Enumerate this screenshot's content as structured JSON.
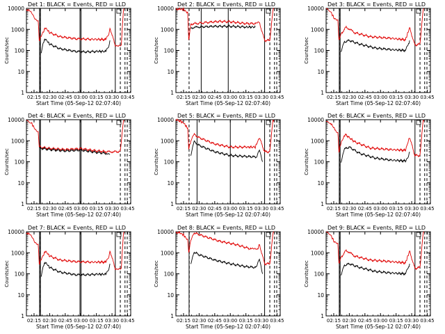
{
  "figure": {
    "start_time_label": "Start Time (05-Sep-12 02:07:40)",
    "ylabel": "Counts/sec",
    "y_ticks": [
      "1",
      "10",
      "100",
      "1000",
      "10000"
    ],
    "x_ticks": [
      "02:15",
      "02:30",
      "02:45",
      "03:00",
      "03:15",
      "03:30",
      "03:45"
    ],
    "events_color": "#000000",
    "lld_color": "#e00000"
  },
  "chart_data": [
    {
      "type": "line",
      "title": "Det 1: BLACK = Events, RED = LLD",
      "ylabel": "Counts/sec",
      "xlabel": "Start Time (05-Sep-12 02:07:40)",
      "yscale": "log",
      "ylim": [
        1,
        10000
      ],
      "xlim": [
        "02:07:40",
        "03:48:00"
      ],
      "solid_vlines": [
        "02:20:20",
        "02:21:10",
        "02:59:10",
        "03:00:10",
        "03:33:10"
      ],
      "dashed_vlines": [
        "02:20:30",
        "03:38:00",
        "03:42:30",
        "03:44:40"
      ],
      "series": [
        {
          "name": "Events",
          "color": "#000000",
          "x": [
            "02:22:00",
            "02:24:00",
            "02:26:00",
            "02:30:00",
            "02:40:00",
            "02:55:00",
            "03:05:00",
            "03:15:00",
            "03:24:00",
            "03:27:00",
            "03:28:00"
          ],
          "values": [
            80,
            250,
            350,
            200,
            120,
            90,
            85,
            90,
            90,
            160,
            300
          ]
        },
        {
          "name": "LLD",
          "color": "#e00000",
          "x": [
            "02:07:40",
            "02:10:00",
            "02:13:00",
            "02:16:00",
            "02:19:00",
            "02:20:00",
            "02:22:00",
            "02:26:00",
            "02:30:00",
            "02:40:00",
            "02:55:00",
            "03:10:00",
            "03:24:00",
            "03:27:00",
            "03:28:00",
            "03:33:00",
            "03:36:00",
            "03:39:00",
            "03:41:00",
            "03:42:00"
          ],
          "values": [
            9000,
            8000,
            5500,
            3000,
            2500,
            300,
            500,
            1200,
            700,
            450,
            360,
            340,
            330,
            600,
            1200,
            180,
            180,
            190,
            9000,
            9500
          ]
        }
      ]
    },
    {
      "type": "line",
      "title": "Det 2: BLACK = Events, RED = LLD",
      "ylabel": "Counts/sec",
      "xlabel": "Start Time (05-Sep-12 02:07:40)",
      "yscale": "log",
      "ylim": [
        1,
        10000
      ],
      "xlim": [
        "02:07:40",
        "03:48:00"
      ],
      "solid_vlines": [
        "02:32:00",
        "02:58:00",
        "03:33:00"
      ],
      "dashed_vlines": [
        "02:20:20",
        "03:38:00",
        "03:42:30",
        "03:44:40"
      ],
      "series": [
        {
          "name": "Events",
          "color": "#000000",
          "x": [
            "02:22:00",
            "02:30:00",
            "02:45:00",
            "03:00:00",
            "03:15:00",
            "03:24:00"
          ],
          "values": [
            1200,
            1300,
            1400,
            1400,
            1300,
            1300
          ]
        },
        {
          "name": "LLD",
          "color": "#e00000",
          "x": [
            "02:07:40",
            "02:11:00",
            "02:15:00",
            "02:19:00",
            "02:20:00",
            "02:22:00",
            "02:40:00",
            "02:50:00",
            "03:00:00",
            "03:15:00",
            "03:25:00",
            "03:28:00",
            "03:33:00",
            "03:38:00",
            "03:41:00",
            "03:42:00"
          ],
          "values": [
            9500,
            9200,
            9000,
            6000,
            300,
            1800,
            2200,
            2400,
            2300,
            1900,
            1900,
            2100,
            300,
            300,
            9000,
            9500
          ]
        }
      ]
    },
    {
      "type": "line",
      "title": "Det 3: BLACK = Events, RED = LLD",
      "ylabel": "Counts/sec",
      "xlabel": "Start Time (05-Sep-12 02:07:40)",
      "yscale": "log",
      "ylim": [
        1,
        10000
      ],
      "xlim": [
        "02:07:40",
        "03:48:00"
      ],
      "solid_vlines": [
        "02:20:20",
        "02:21:10",
        "03:33:10"
      ],
      "dashed_vlines": [
        "02:20:30",
        "03:38:00",
        "03:42:30",
        "03:44:40"
      ],
      "series": [
        {
          "name": "Events",
          "color": "#000000",
          "x": [
            "02:22:00",
            "02:25:00",
            "02:30:00",
            "02:40:00",
            "02:55:00",
            "03:10:00",
            "03:24:00",
            "03:27:00",
            "03:28:00"
          ],
          "values": [
            80,
            250,
            300,
            200,
            130,
            110,
            100,
            200,
            300
          ]
        },
        {
          "name": "LLD",
          "color": "#e00000",
          "x": [
            "02:07:40",
            "02:12:00",
            "02:16:00",
            "02:19:00",
            "02:20:00",
            "02:22:00",
            "02:27:00",
            "02:35:00",
            "02:50:00",
            "03:10:00",
            "03:24:00",
            "03:28:00",
            "03:33:00",
            "03:38:00",
            "03:41:00",
            "03:42:00"
          ],
          "values": [
            9000,
            7000,
            3000,
            2500,
            300,
            600,
            1300,
            700,
            450,
            380,
            320,
            1200,
            180,
            200,
            9000,
            9500
          ]
        }
      ]
    },
    {
      "type": "line",
      "title": "Det 4: BLACK = Events, RED = LLD",
      "ylabel": "Counts/sec",
      "xlabel": "Start Time (05-Sep-12 02:07:40)",
      "yscale": "log",
      "ylim": [
        1,
        10000
      ],
      "xlim": [
        "02:07:40",
        "03:48:00"
      ],
      "solid_vlines": [
        "02:20:20",
        "02:21:10",
        "02:59:10",
        "03:00:10"
      ],
      "dashed_vlines": [
        "03:38:00",
        "03:42:30",
        "03:44:40"
      ],
      "series": [
        {
          "name": "Events",
          "color": "#000000",
          "x": [
            "02:20:00",
            "02:30:00",
            "02:45:00",
            "03:00:00",
            "03:15:00",
            "03:25:00",
            "03:28:00"
          ],
          "values": [
            450,
            380,
            330,
            360,
            280,
            250,
            220
          ]
        },
        {
          "name": "LLD",
          "color": "#e00000",
          "x": [
            "02:07:40",
            "02:12:00",
            "02:16:00",
            "02:19:00",
            "02:20:00",
            "02:30:00",
            "02:45:00",
            "03:00:00",
            "03:15:00",
            "03:25:00",
            "03:33:00",
            "03:38:00",
            "03:41:00",
            "03:42:00"
          ],
          "values": [
            9000,
            7500,
            3500,
            2500,
            500,
            430,
            380,
            420,
            330,
            300,
            300,
            300,
            9000,
            9500
          ]
        }
      ]
    },
    {
      "type": "line",
      "title": "Det 5: BLACK = Events, RED = LLD",
      "ylabel": "Counts/sec",
      "xlabel": "Start Time (05-Sep-12 02:07:40)",
      "yscale": "log",
      "ylim": [
        1,
        10000
      ],
      "xlim": [
        "02:07:40",
        "03:48:00"
      ],
      "solid_vlines": [
        "02:28:00",
        "03:00:00",
        "03:33:00"
      ],
      "dashed_vlines": [
        "02:20:20",
        "03:38:00",
        "03:42:30",
        "03:44:40"
      ],
      "series": [
        {
          "name": "Events",
          "color": "#000000",
          "x": [
            "02:22:00",
            "02:25:00",
            "02:30:00",
            "02:45:00",
            "03:00:00",
            "03:15:00",
            "03:25:00",
            "03:28:00",
            "03:31:00"
          ],
          "values": [
            200,
            900,
            600,
            300,
            200,
            180,
            170,
            400,
            100
          ]
        },
        {
          "name": "LLD",
          "color": "#e00000",
          "x": [
            "02:07:40",
            "02:11:00",
            "02:15:00",
            "02:19:00",
            "02:20:00",
            "02:22:00",
            "02:25:00",
            "02:30:00",
            "02:45:00",
            "03:00:00",
            "03:15:00",
            "03:24:00",
            "03:28:00",
            "03:33:00",
            "03:38:00",
            "03:41:00",
            "03:42:00"
          ],
          "values": [
            9500,
            9000,
            7000,
            4000,
            400,
            1000,
            2000,
            1400,
            700,
            500,
            500,
            500,
            1400,
            300,
            300,
            9000,
            9500
          ]
        }
      ]
    },
    {
      "type": "line",
      "title": "Det 6: BLACK = Events, RED = LLD",
      "ylabel": "Counts/sec",
      "xlabel": "Start Time (05-Sep-12 02:07:40)",
      "yscale": "log",
      "ylim": [
        1,
        10000
      ],
      "xlim": [
        "02:07:40",
        "03:48:00"
      ],
      "solid_vlines": [
        "02:20:20",
        "02:21:10",
        "03:33:10"
      ],
      "dashed_vlines": [
        "02:20:30",
        "03:38:00",
        "03:42:30",
        "03:44:40"
      ],
      "series": [
        {
          "name": "Events",
          "color": "#000000",
          "x": [
            "02:22:00",
            "02:25:00",
            "02:30:00",
            "02:40:00",
            "02:55:00",
            "03:10:00",
            "03:24:00",
            "03:27:00",
            "03:28:00"
          ],
          "values": [
            100,
            400,
            500,
            250,
            150,
            120,
            110,
            200,
            300
          ]
        },
        {
          "name": "LLD",
          "color": "#e00000",
          "x": [
            "02:07:40",
            "02:12:00",
            "02:16:00",
            "02:19:00",
            "02:20:00",
            "02:22:00",
            "02:26:00",
            "02:35:00",
            "02:50:00",
            "03:10:00",
            "03:24:00",
            "03:28:00",
            "03:33:00",
            "03:38:00",
            "03:41:00",
            "03:42:00"
          ],
          "values": [
            9000,
            7000,
            3500,
            2500,
            300,
            800,
            2000,
            900,
            450,
            380,
            350,
            1500,
            200,
            200,
            9000,
            9500
          ]
        }
      ]
    },
    {
      "type": "line",
      "title": "Det 7: BLACK = Events, RED = LLD",
      "ylabel": "Counts/sec",
      "xlabel": "Start Time (05-Sep-12 02:07:40)",
      "yscale": "log",
      "ylim": [
        1,
        10000
      ],
      "xlim": [
        "02:07:40",
        "03:48:00"
      ],
      "solid_vlines": [
        "02:20:20",
        "02:21:10",
        "02:59:10",
        "03:00:10",
        "03:33:10"
      ],
      "dashed_vlines": [
        "02:20:30",
        "03:38:00",
        "03:42:30",
        "03:44:40"
      ],
      "series": [
        {
          "name": "Events",
          "color": "#000000",
          "x": [
            "02:22:00",
            "02:24:00",
            "02:26:00",
            "02:30:00",
            "02:40:00",
            "02:55:00",
            "03:05:00",
            "03:15:00",
            "03:24:00",
            "03:27:00",
            "03:28:00"
          ],
          "values": [
            80,
            250,
            350,
            200,
            120,
            90,
            90,
            95,
            95,
            170,
            300
          ]
        },
        {
          "name": "LLD",
          "color": "#e00000",
          "x": [
            "02:07:40",
            "02:10:00",
            "02:13:00",
            "02:16:00",
            "02:19:00",
            "02:20:00",
            "02:22:00",
            "02:26:00",
            "02:30:00",
            "02:40:00",
            "02:55:00",
            "03:10:00",
            "03:24:00",
            "03:27:00",
            "03:28:00",
            "03:33:00",
            "03:36:00",
            "03:39:00",
            "03:41:00",
            "03:42:00"
          ],
          "values": [
            9000,
            8000,
            5500,
            3000,
            2500,
            300,
            500,
            1200,
            700,
            450,
            380,
            360,
            360,
            650,
            1300,
            180,
            180,
            190,
            9000,
            9500
          ]
        }
      ]
    },
    {
      "type": "line",
      "title": "Det 8: BLACK = Events, RED = LLD",
      "ylabel": "Counts/sec",
      "xlabel": "Start Time (05-Sep-12 02:07:40)",
      "yscale": "log",
      "ylim": [
        1,
        10000
      ],
      "xlim": [
        "02:07:40",
        "03:48:00"
      ],
      "solid_vlines": [
        "02:20:20",
        "03:33:00"
      ],
      "dashed_vlines": [
        "02:20:30",
        "03:38:00",
        "03:42:30",
        "03:44:40"
      ],
      "series": [
        {
          "name": "Events",
          "color": "#000000",
          "x": [
            "02:22:00",
            "02:25:00",
            "02:30:00",
            "02:45:00",
            "03:00:00",
            "03:15:00",
            "03:25:00",
            "03:28:00",
            "03:31:00"
          ],
          "values": [
            300,
            1100,
            800,
            450,
            300,
            220,
            200,
            500,
            100
          ]
        },
        {
          "name": "LLD",
          "color": "#e00000",
          "x": [
            "02:07:40",
            "02:11:00",
            "02:15:00",
            "02:19:00",
            "02:20:00",
            "02:22:00",
            "02:25:00",
            "02:35:00",
            "02:50:00",
            "03:05:00",
            "03:20:00",
            "03:26:00",
            "03:28:00",
            "03:33:00",
            "03:38:00",
            "03:41:00",
            "03:42:00"
          ],
          "values": [
            9500,
            9000,
            7000,
            4000,
            1000,
            4000,
            9000,
            6000,
            3500,
            2500,
            1500,
            1400,
            2500,
            300,
            300,
            9000,
            9500
          ]
        }
      ]
    },
    {
      "type": "line",
      "title": "Det 9: BLACK = Events, RED = LLD",
      "ylabel": "Counts/sec",
      "xlabel": "Start Time (05-Sep-12 02:07:40)",
      "yscale": "log",
      "ylim": [
        1,
        10000
      ],
      "xlim": [
        "02:07:40",
        "03:48:00"
      ],
      "solid_vlines": [
        "02:20:20",
        "02:21:10",
        "03:33:10"
      ],
      "dashed_vlines": [
        "02:20:30",
        "03:38:00",
        "03:42:30",
        "03:44:40"
      ],
      "series": [
        {
          "name": "Events",
          "color": "#000000",
          "x": [
            "02:22:00",
            "02:25:00",
            "02:30:00",
            "02:40:00",
            "02:55:00",
            "03:10:00",
            "03:24:00",
            "03:27:00",
            "03:28:00"
          ],
          "values": [
            80,
            250,
            300,
            200,
            130,
            110,
            100,
            200,
            300
          ]
        },
        {
          "name": "LLD",
          "color": "#e00000",
          "x": [
            "02:07:40",
            "02:12:00",
            "02:16:00",
            "02:19:00",
            "02:20:00",
            "02:22:00",
            "02:27:00",
            "02:35:00",
            "02:50:00",
            "03:10:00",
            "03:24:00",
            "03:28:00",
            "03:33:00",
            "03:38:00",
            "03:41:00",
            "03:42:00"
          ],
          "values": [
            9000,
            7000,
            3000,
            2500,
            300,
            600,
            1300,
            700,
            450,
            380,
            330,
            1200,
            180,
            200,
            9000,
            9500
          ]
        }
      ]
    }
  ]
}
